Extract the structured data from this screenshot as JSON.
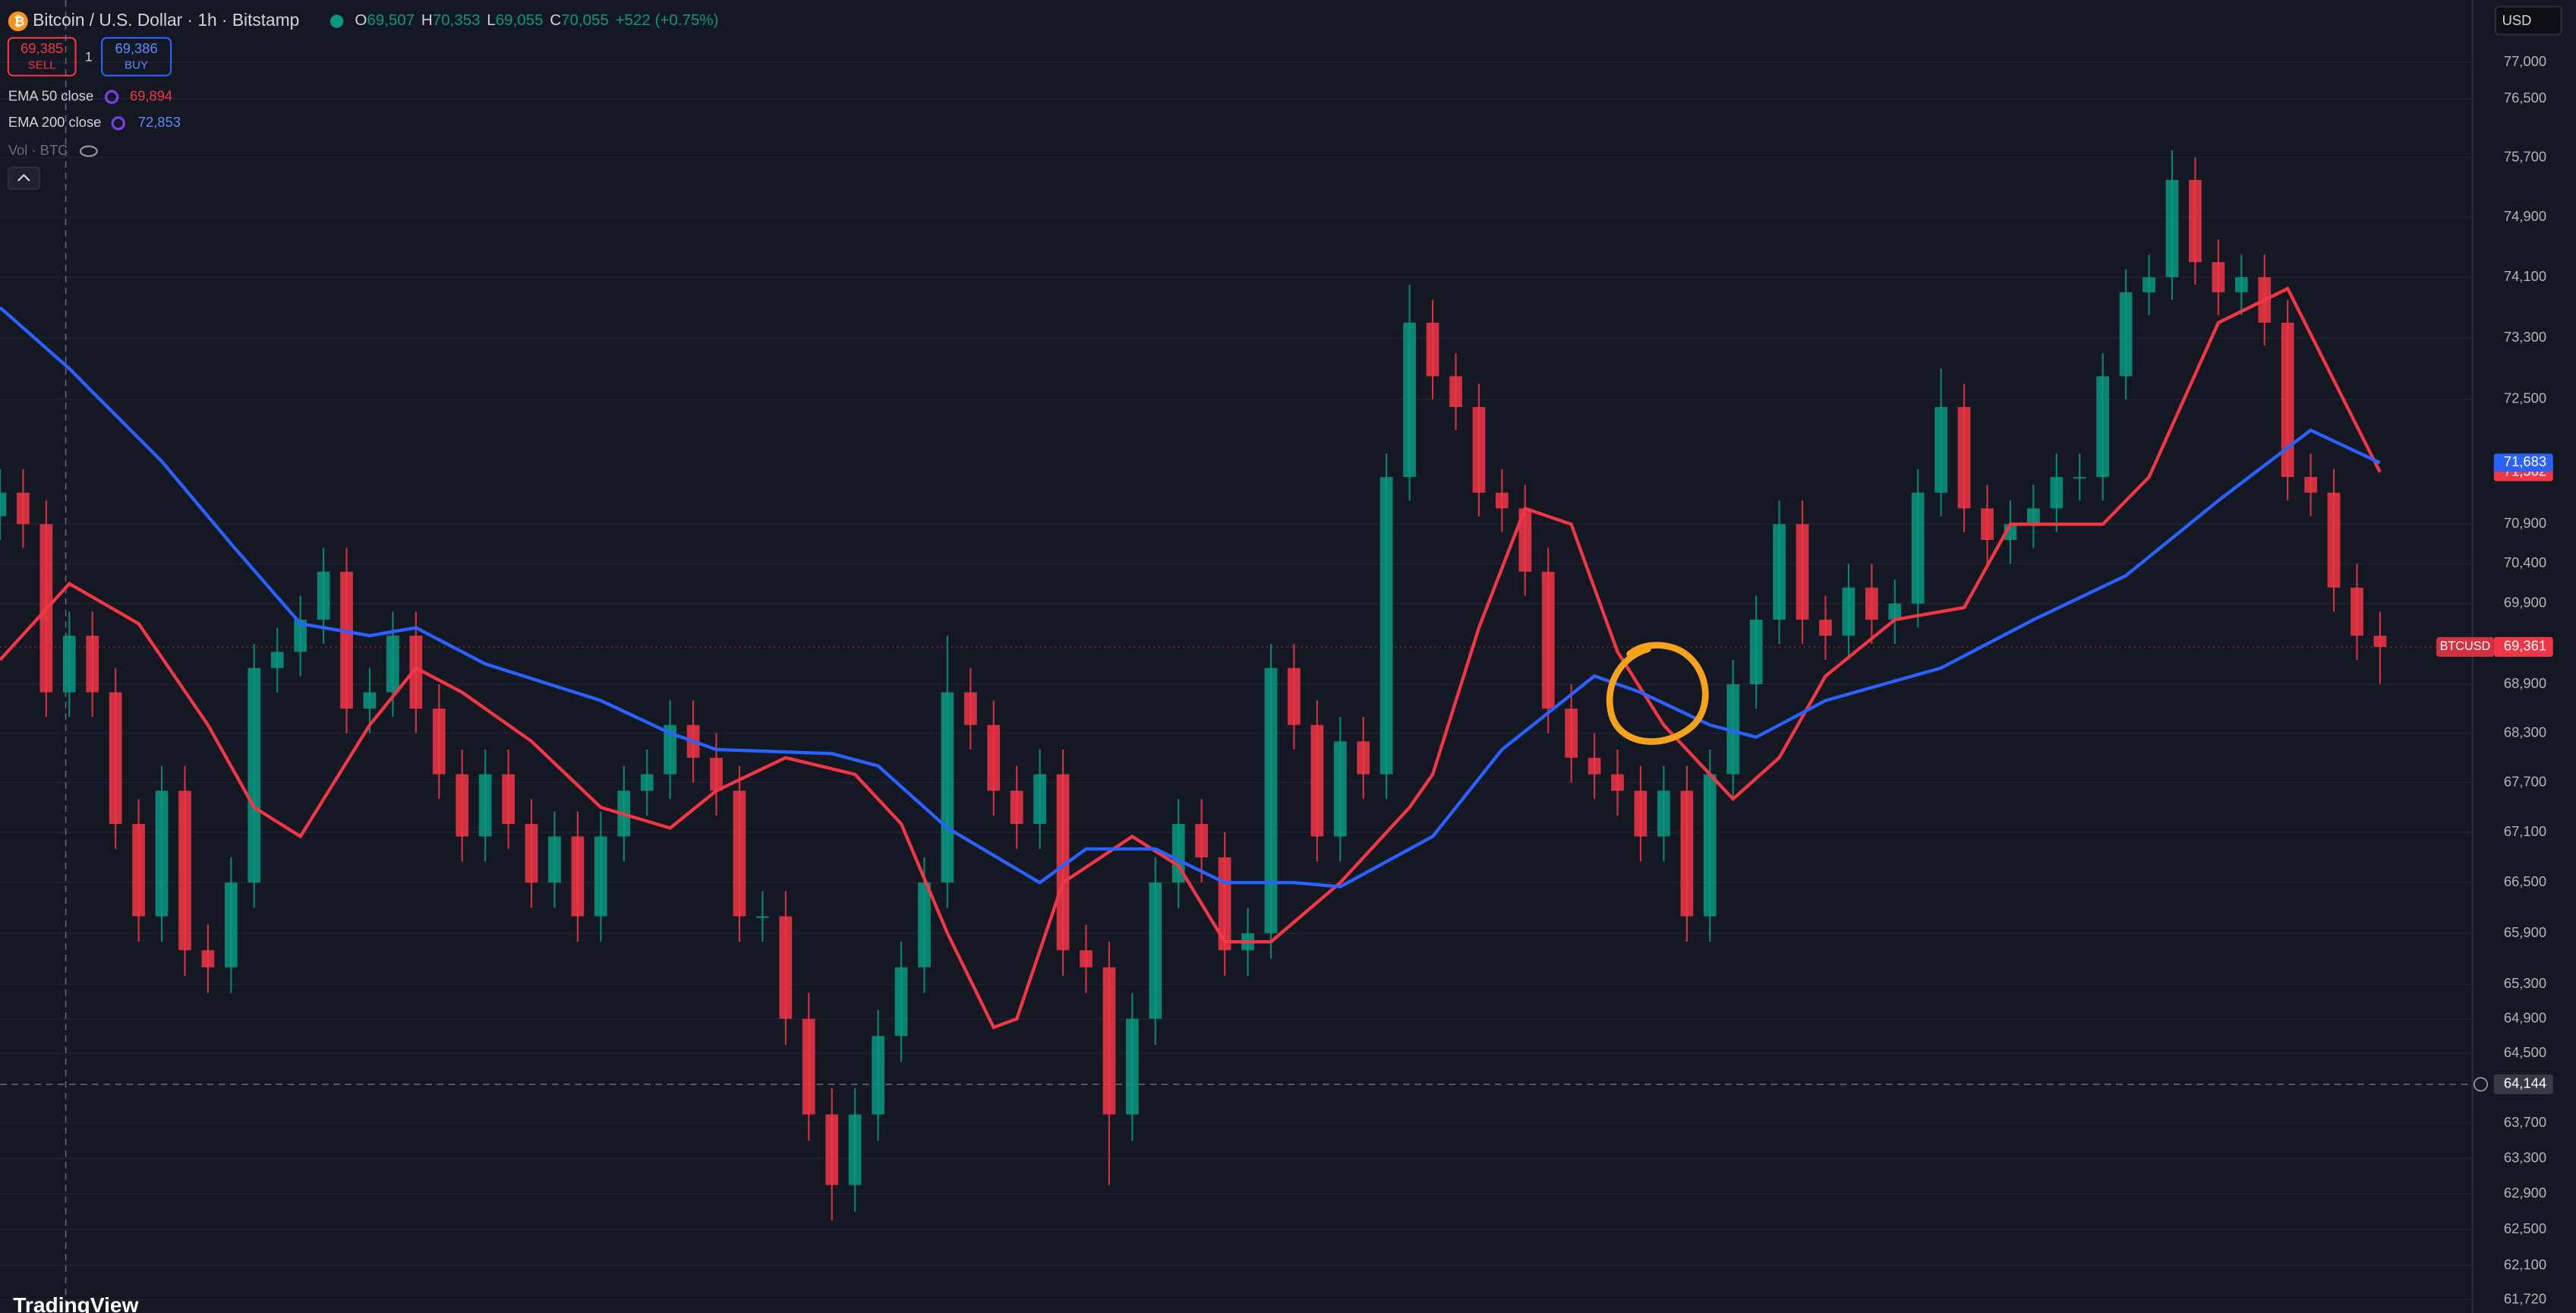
{
  "toolbar": {
    "symbol": "Bitcoin / U.S. Dollar · 1h · Bitstamp",
    "ohlc": [
      {
        "key": "O",
        "value": "69,507"
      },
      {
        "key": "H",
        "value": "70,353"
      },
      {
        "key": "L",
        "value": "69,055"
      },
      {
        "key": "C",
        "value": "70,055"
      }
    ],
    "change": "+522 (+0.75%)",
    "sell": {
      "price": "69,385",
      "label": "SELL"
    },
    "buy": {
      "price": "69,386",
      "label": "BUY"
    },
    "spread": "1",
    "indicators": [
      {
        "name": "EMA 50 close",
        "value": "69,894"
      },
      {
        "name": "EMA 200 close",
        "value": "72,853"
      }
    ],
    "volume": "Vol · BTC",
    "currency": "USD",
    "logo": "TradingView"
  },
  "chart_data": {
    "type": "candlestick",
    "log_scale": true,
    "grid": true,
    "xlim": [
      0,
      107
    ],
    "ylim": [
      61575,
      77864
    ],
    "yticks": [
      {
        "value": 77000,
        "label": "77,000"
      },
      {
        "value": 76500,
        "label": "76,500"
      },
      {
        "value": 75700,
        "label": "75,700"
      },
      {
        "value": 74900,
        "label": "74,900"
      },
      {
        "value": 74100,
        "label": "74,100"
      },
      {
        "value": 73300,
        "label": "73,300"
      },
      {
        "value": 72500,
        "label": "72,500"
      },
      {
        "value": 70900,
        "label": "70,900"
      },
      {
        "value": 70400,
        "label": "70,400"
      },
      {
        "value": 69900,
        "label": "69,900"
      },
      {
        "value": 68900,
        "label": "68,900"
      },
      {
        "value": 68300,
        "label": "68,300"
      },
      {
        "value": 67700,
        "label": "67,700"
      },
      {
        "value": 67100,
        "label": "67,100"
      },
      {
        "value": 66500,
        "label": "66,500"
      },
      {
        "value": 65900,
        "label": "65,900"
      },
      {
        "value": 65300,
        "label": "65,300"
      },
      {
        "value": 64900,
        "label": "64,900"
      },
      {
        "value": 64500,
        "label": "64,500"
      },
      {
        "value": 63700,
        "label": "63,700"
      },
      {
        "value": 63300,
        "label": "63,300"
      },
      {
        "value": 62900,
        "label": "62,900"
      },
      {
        "value": 62500,
        "label": "62,500"
      },
      {
        "value": 62100,
        "label": "62,100"
      },
      {
        "value": 61720,
        "label": "61,720"
      }
    ],
    "candles": {
      "up_color": "#089981",
      "down_color": "#f23645",
      "open": [
        71000,
        71300,
        70900,
        68800,
        69500,
        68800,
        67200,
        66100,
        67600,
        65700,
        65500,
        66500,
        69100,
        69300,
        69700,
        70300,
        68600,
        68800,
        69500,
        68600,
        67800,
        67050,
        67800,
        67200,
        66500,
        67050,
        66100,
        67050,
        67600,
        67800,
        68400,
        68000,
        67600,
        66100,
        66100,
        64900,
        63800,
        63000,
        63800,
        64700,
        65500,
        66500,
        68800,
        68400,
        67600,
        67200,
        67800,
        65700,
        65500,
        63800,
        64900,
        66500,
        67200,
        66800,
        65700,
        65900,
        69100,
        68400,
        67050,
        68200,
        67800,
        71500,
        73500,
        72800,
        72400,
        71300,
        71100,
        70300,
        68600,
        68000,
        67800,
        67600,
        67050,
        67600,
        66100,
        67800,
        68900,
        69700,
        70900,
        69700,
        69500,
        70100,
        69700,
        69900,
        71300,
        72400,
        71100,
        70700,
        70900,
        71100,
        71500,
        71500,
        72800,
        73900,
        74100,
        75400,
        74300,
        73900,
        74100,
        73500,
        71500,
        71300,
        70100,
        69500
      ],
      "high": [
        71600,
        71600,
        71200,
        69800,
        69800,
        69100,
        67500,
        67900,
        67900,
        66000,
        66800,
        69400,
        69600,
        70000,
        70600,
        70600,
        69100,
        69800,
        69800,
        68900,
        68100,
        68100,
        68100,
        67500,
        67350,
        67350,
        67350,
        67900,
        68100,
        68700,
        68700,
        68300,
        67900,
        66400,
        66400,
        65200,
        64100,
        64100,
        65000,
        65800,
        66800,
        69500,
        69100,
        68700,
        67900,
        68100,
        68100,
        66000,
        65800,
        65200,
        66800,
        67500,
        67500,
        67100,
        66200,
        69400,
        69400,
        68700,
        68500,
        68500,
        71800,
        74000,
        73800,
        73100,
        72700,
        71600,
        71400,
        70600,
        68900,
        68300,
        68100,
        67900,
        67900,
        67900,
        68100,
        69200,
        70000,
        71200,
        71200,
        70000,
        70400,
        70400,
        70200,
        71600,
        72900,
        72700,
        71400,
        71200,
        71400,
        71800,
        71800,
        73100,
        74200,
        74400,
        75800,
        75700,
        74600,
        74400,
        74400,
        73800,
        71800,
        71600,
        70400,
        69800
      ],
      "low": [
        70700,
        70600,
        68500,
        68500,
        68500,
        66900,
        65800,
        65800,
        65400,
        65200,
        65200,
        66200,
        68800,
        69000,
        69400,
        68300,
        68300,
        68500,
        68300,
        67500,
        66750,
        66750,
        66900,
        66200,
        66200,
        65800,
        65800,
        66750,
        67300,
        67500,
        67700,
        67300,
        65800,
        65800,
        64600,
        63500,
        62600,
        62700,
        63500,
        64400,
        65200,
        66200,
        68100,
        67300,
        66900,
        66900,
        65400,
        65200,
        63000,
        63500,
        64600,
        66200,
        66500,
        65400,
        65400,
        65600,
        68100,
        66750,
        66750,
        67500,
        67500,
        71200,
        72500,
        72100,
        71000,
        70800,
        70000,
        68300,
        67700,
        67500,
        67300,
        66750,
        66750,
        65800,
        65800,
        67500,
        68600,
        69400,
        69400,
        69200,
        69200,
        69400,
        69400,
        69600,
        71000,
        70800,
        70400,
        70400,
        70600,
        70800,
        71200,
        71200,
        72500,
        73600,
        73800,
        74000,
        73600,
        73600,
        73200,
        71200,
        71000,
        69800,
        69200,
        68900
      ],
      "close": [
        71300,
        70900,
        68800,
        69500,
        68800,
        67200,
        66100,
        67600,
        65700,
        65500,
        66500,
        69100,
        69300,
        69700,
        70300,
        68600,
        68800,
        69500,
        68600,
        67800,
        67050,
        67800,
        67200,
        66500,
        67050,
        66100,
        67050,
        67600,
        67800,
        68400,
        68000,
        67600,
        66100,
        66100,
        64900,
        63800,
        63000,
        63800,
        64700,
        65500,
        66500,
        68800,
        68400,
        67600,
        67200,
        67800,
        65700,
        65500,
        63800,
        64900,
        66500,
        67200,
        66800,
        65700,
        65900,
        69100,
        68400,
        67050,
        68200,
        67800,
        71500,
        73500,
        72800,
        72400,
        71300,
        71100,
        70300,
        68600,
        68000,
        67800,
        67600,
        67050,
        67600,
        66100,
        67800,
        68900,
        69700,
        70900,
        69700,
        69500,
        70100,
        69700,
        69900,
        71300,
        72400,
        71100,
        70700,
        70900,
        71100,
        71500,
        71500,
        72800,
        73900,
        74100,
        75400,
        74300,
        73900,
        74100,
        73500,
        71500,
        71300,
        70100,
        69500,
        69361
      ]
    },
    "price_line": {
      "name": "BTCUSD",
      "value": 69361,
      "label": "69,361",
      "color": "#f23645"
    },
    "crosshair": {
      "value": 64144,
      "label": "64,144"
    },
    "series": [
      {
        "name": "EMA 50 close",
        "color": "#f23645",
        "x": [
          0,
          3,
          6,
          9,
          11,
          13,
          16,
          18,
          20,
          23,
          26,
          29,
          31,
          34,
          37,
          39,
          41,
          43,
          44,
          46,
          49,
          51,
          53,
          55,
          58,
          61,
          62,
          64,
          66,
          68,
          70,
          72,
          75,
          77,
          79,
          82,
          85,
          87,
          91,
          93,
          96,
          99,
          103
        ],
        "values": [
          69200,
          70150,
          69650,
          68400,
          67400,
          67050,
          68400,
          69100,
          68800,
          68200,
          67400,
          67150,
          67600,
          68000,
          67800,
          67200,
          65900,
          64800,
          64900,
          66500,
          67050,
          66700,
          65800,
          65800,
          66500,
          67400,
          67800,
          69600,
          71100,
          70900,
          69300,
          68400,
          67500,
          68000,
          69000,
          69700,
          69850,
          70900,
          70900,
          71500,
          73500,
          73950,
          71562
        ],
        "value_labels": [
          null,
          null,
          null,
          null,
          null,
          null,
          null,
          null,
          null,
          null,
          null,
          null,
          null,
          null,
          null,
          null,
          null,
          null,
          null,
          null,
          null,
          null,
          null,
          null,
          null,
          null,
          null,
          null,
          null,
          null,
          null,
          null,
          null,
          null,
          null,
          null,
          null,
          null,
          null,
          null,
          null,
          null,
          "71,562"
        ]
      },
      {
        "name": "EMA 200 close",
        "color": "#2962ff",
        "x": [
          0,
          3,
          7,
          10,
          13,
          16,
          18,
          21,
          26,
          29,
          31,
          36,
          38,
          41,
          45,
          47,
          50,
          53,
          56,
          58,
          62,
          65,
          69,
          71,
          74,
          76,
          79,
          84,
          88,
          92,
          96,
          100,
          103
        ],
        "values": [
          73700,
          72900,
          71700,
          70650,
          69650,
          69500,
          69600,
          69150,
          68700,
          68300,
          68100,
          68050,
          67900,
          67150,
          66500,
          66900,
          66900,
          66500,
          66500,
          66450,
          67050,
          68100,
          69000,
          68800,
          68400,
          68250,
          68700,
          69100,
          69700,
          70250,
          71200,
          72100,
          71683
        ],
        "value_labels": [
          null,
          null,
          null,
          null,
          null,
          null,
          null,
          null,
          null,
          null,
          null,
          null,
          null,
          null,
          null,
          null,
          null,
          null,
          null,
          null,
          null,
          null,
          null,
          null,
          null,
          null,
          null,
          null,
          null,
          null,
          null,
          null,
          "71,683"
        ]
      }
    ]
  }
}
